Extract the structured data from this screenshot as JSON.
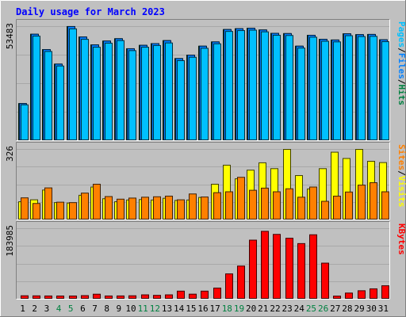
{
  "chart_data": {
    "type": "bar",
    "title": "Daily usage for March 2023",
    "colors": {
      "background": "#c0c0c0",
      "title": "#0000ff",
      "hits": "#008040",
      "files": "#0080ff",
      "pages": "#00c0ff",
      "visits": "#ffff00",
      "sites": "#ff8000",
      "kbytes": "#ff0000",
      "axis_default": "#000000",
      "axis_weekend": "#008040"
    },
    "categories": [
      "1",
      "2",
      "3",
      "4",
      "5",
      "6",
      "7",
      "8",
      "9",
      "10",
      "11",
      "12",
      "13",
      "14",
      "15",
      "16",
      "17",
      "18",
      "19",
      "20",
      "21",
      "22",
      "23",
      "24",
      "25",
      "26",
      "27",
      "28",
      "29",
      "30",
      "31"
    ],
    "weekend_days": [
      "4",
      "5",
      "11",
      "12",
      "18",
      "19",
      "25",
      "26"
    ],
    "panels": [
      {
        "id": "hits-files-pages",
        "ymax_label": "53483",
        "ylim": [
          0,
          53483
        ],
        "legend": [
          {
            "label": "Pages",
            "color": "#00c0ff"
          },
          {
            "label": "/",
            "color": "#000000"
          },
          {
            "label": "Files",
            "color": "#0080ff"
          },
          {
            "label": "/",
            "color": "#000000"
          },
          {
            "label": "Hits",
            "color": "#008040"
          }
        ],
        "series": [
          {
            "name": "Hits",
            "color": "#008040",
            "values": [
              17400,
              49900,
              42700,
              35900,
              53500,
              48600,
              44900,
              46700,
              47800,
              43100,
              44700,
              45500,
              46900,
              38500,
              40100,
              44300,
              46300,
              52100,
              52500,
              52700,
              51900,
              50300,
              50200,
              44300,
              49400,
              47500,
              47200,
              50100,
              49700,
              49800,
              47300
            ]
          },
          {
            "name": "Files",
            "color": "#0080ff",
            "values": [
              17400,
              49900,
              42700,
              35900,
              53500,
              48600,
              44900,
              46700,
              47800,
              43100,
              44700,
              45500,
              46900,
              38500,
              40100,
              44300,
              46300,
              52100,
              52500,
              52700,
              51900,
              50300,
              50200,
              44300,
              49400,
              47500,
              47200,
              50100,
              49700,
              49800,
              47300
            ]
          },
          {
            "name": "Pages",
            "color": "#00c0ff",
            "values": [
              16800,
              49000,
              41800,
              35000,
              52400,
              47500,
              43800,
              45700,
              46900,
              42200,
              43800,
              44600,
              45800,
              37500,
              39100,
              43300,
              45400,
              51200,
              51600,
              51800,
              51000,
              49400,
              49300,
              43400,
              48500,
              46600,
              46300,
              49200,
              48800,
              48900,
              46400
            ]
          }
        ]
      },
      {
        "id": "sites-visits",
        "ymax_label": "326",
        "ylim": [
          0,
          326
        ],
        "legend": [
          {
            "label": "Sites",
            "color": "#ff8000"
          },
          {
            "label": "/",
            "color": "#000000"
          },
          {
            "label": "Visits",
            "color": "#ffff00"
          }
        ],
        "series": [
          {
            "name": "Visits",
            "color": "#ffff00",
            "values": [
              84,
              93,
              138,
              80,
              78,
              114,
              152,
              98,
              84,
              92,
              94,
              92,
              100,
              90,
              92,
              104,
              165,
              253,
              190,
              230,
              264,
              237,
              326,
              205,
              143,
              237,
              313,
              284,
              326,
              271,
              265
            ]
          },
          {
            "name": "Sites",
            "color": "#ff8000",
            "values": [
              102,
              76,
              148,
              82,
              80,
              124,
              165,
              108,
              96,
              101,
              105,
              107,
              110,
              93,
              120,
              106,
              126,
              130,
              197,
              137,
              147,
              130,
              144,
              105,
              152,
              86,
              110,
              129,
              161,
              172,
              130
            ]
          }
        ]
      },
      {
        "id": "kbytes",
        "ymax_label": "183985",
        "ylim": [
          0,
          183985
        ],
        "legend": [
          {
            "label": "KBytes",
            "color": "#ff0000"
          }
        ],
        "series": [
          {
            "name": "KBytes",
            "color": "#ff0000",
            "values": [
              8900,
              8700,
              8400,
              8300,
              8300,
              9300,
              13000,
              8400,
              8500,
              8900,
              11300,
              10000,
              11300,
              21000,
              13100,
              21000,
              29000,
              66000,
              86500,
              154000,
              177000,
              169000,
              159000,
              145000,
              168000,
              94000,
              8000,
              16000,
              22000,
              27000,
              35000
            ]
          }
        ]
      }
    ]
  }
}
